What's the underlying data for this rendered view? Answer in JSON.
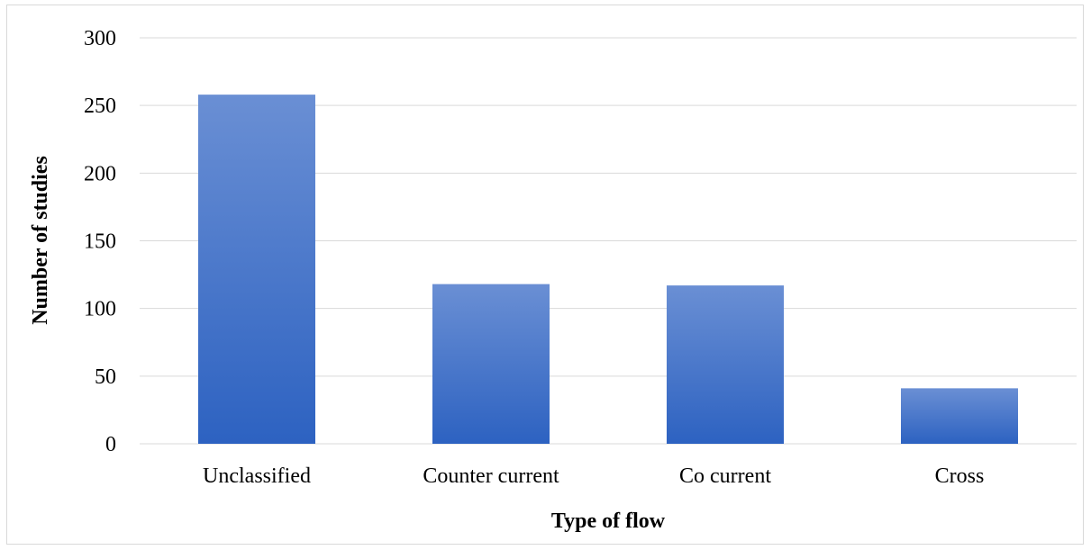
{
  "chart_data": {
    "type": "bar",
    "title": "",
    "xlabel": "Type of flow",
    "ylabel": "Number of studies",
    "categories": [
      "Unclassified",
      "Counter current",
      "Co current",
      "Cross"
    ],
    "values": [
      258,
      118,
      117,
      41
    ],
    "ylim": [
      0,
      300
    ],
    "yticks": [
      0,
      50,
      100,
      150,
      200,
      250,
      300
    ],
    "grid": true,
    "legend": "none",
    "bar_color_top": "#6a8fd4",
    "bar_color_bottom": "#2d62c1",
    "grid_color": "#d9d9d9"
  }
}
